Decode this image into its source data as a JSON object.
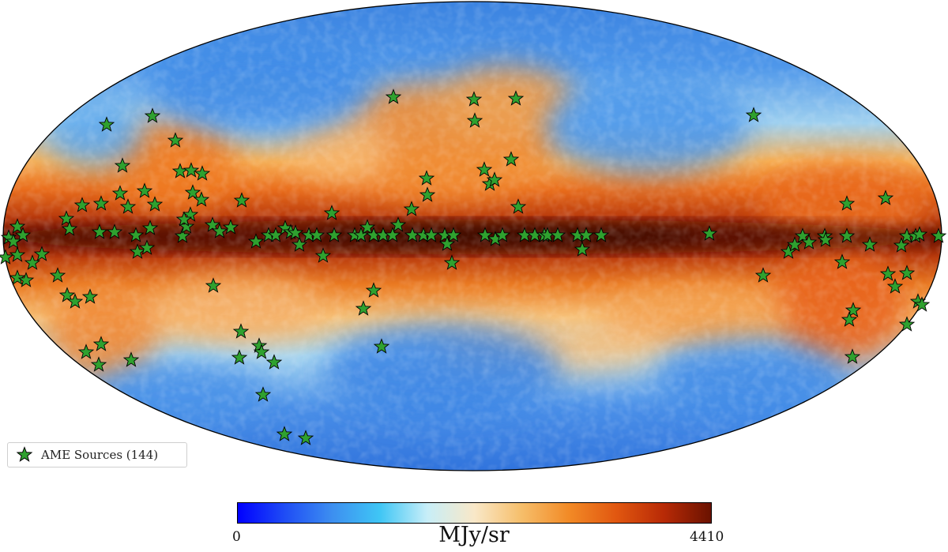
{
  "map": {
    "projection": "mollweide",
    "colormap": [
      "#0000ff",
      "#2a6ee6",
      "#5fb0f0",
      "#c6e6f2",
      "#fde2b0",
      "#f6a843",
      "#e75a12",
      "#b52a06",
      "#641200"
    ],
    "markers": {
      "symbol": "star",
      "fill": "#2fa12f",
      "stroke": "#000000",
      "count_shown": 144
    }
  },
  "legend": {
    "label": "AME Sources (144)",
    "icon": "star-icon"
  },
  "colorbar": {
    "min_label": "0",
    "max_label": "4410",
    "unit_label": "MJy/sr",
    "colors": [
      "#0000ff",
      "#1f4df5",
      "#3d8ff0",
      "#3fc6f5",
      "#c7eef8",
      "#f9e8c8",
      "#f6be6a",
      "#f28a26",
      "#e15710",
      "#b82a06",
      "#6a1200"
    ]
  }
}
